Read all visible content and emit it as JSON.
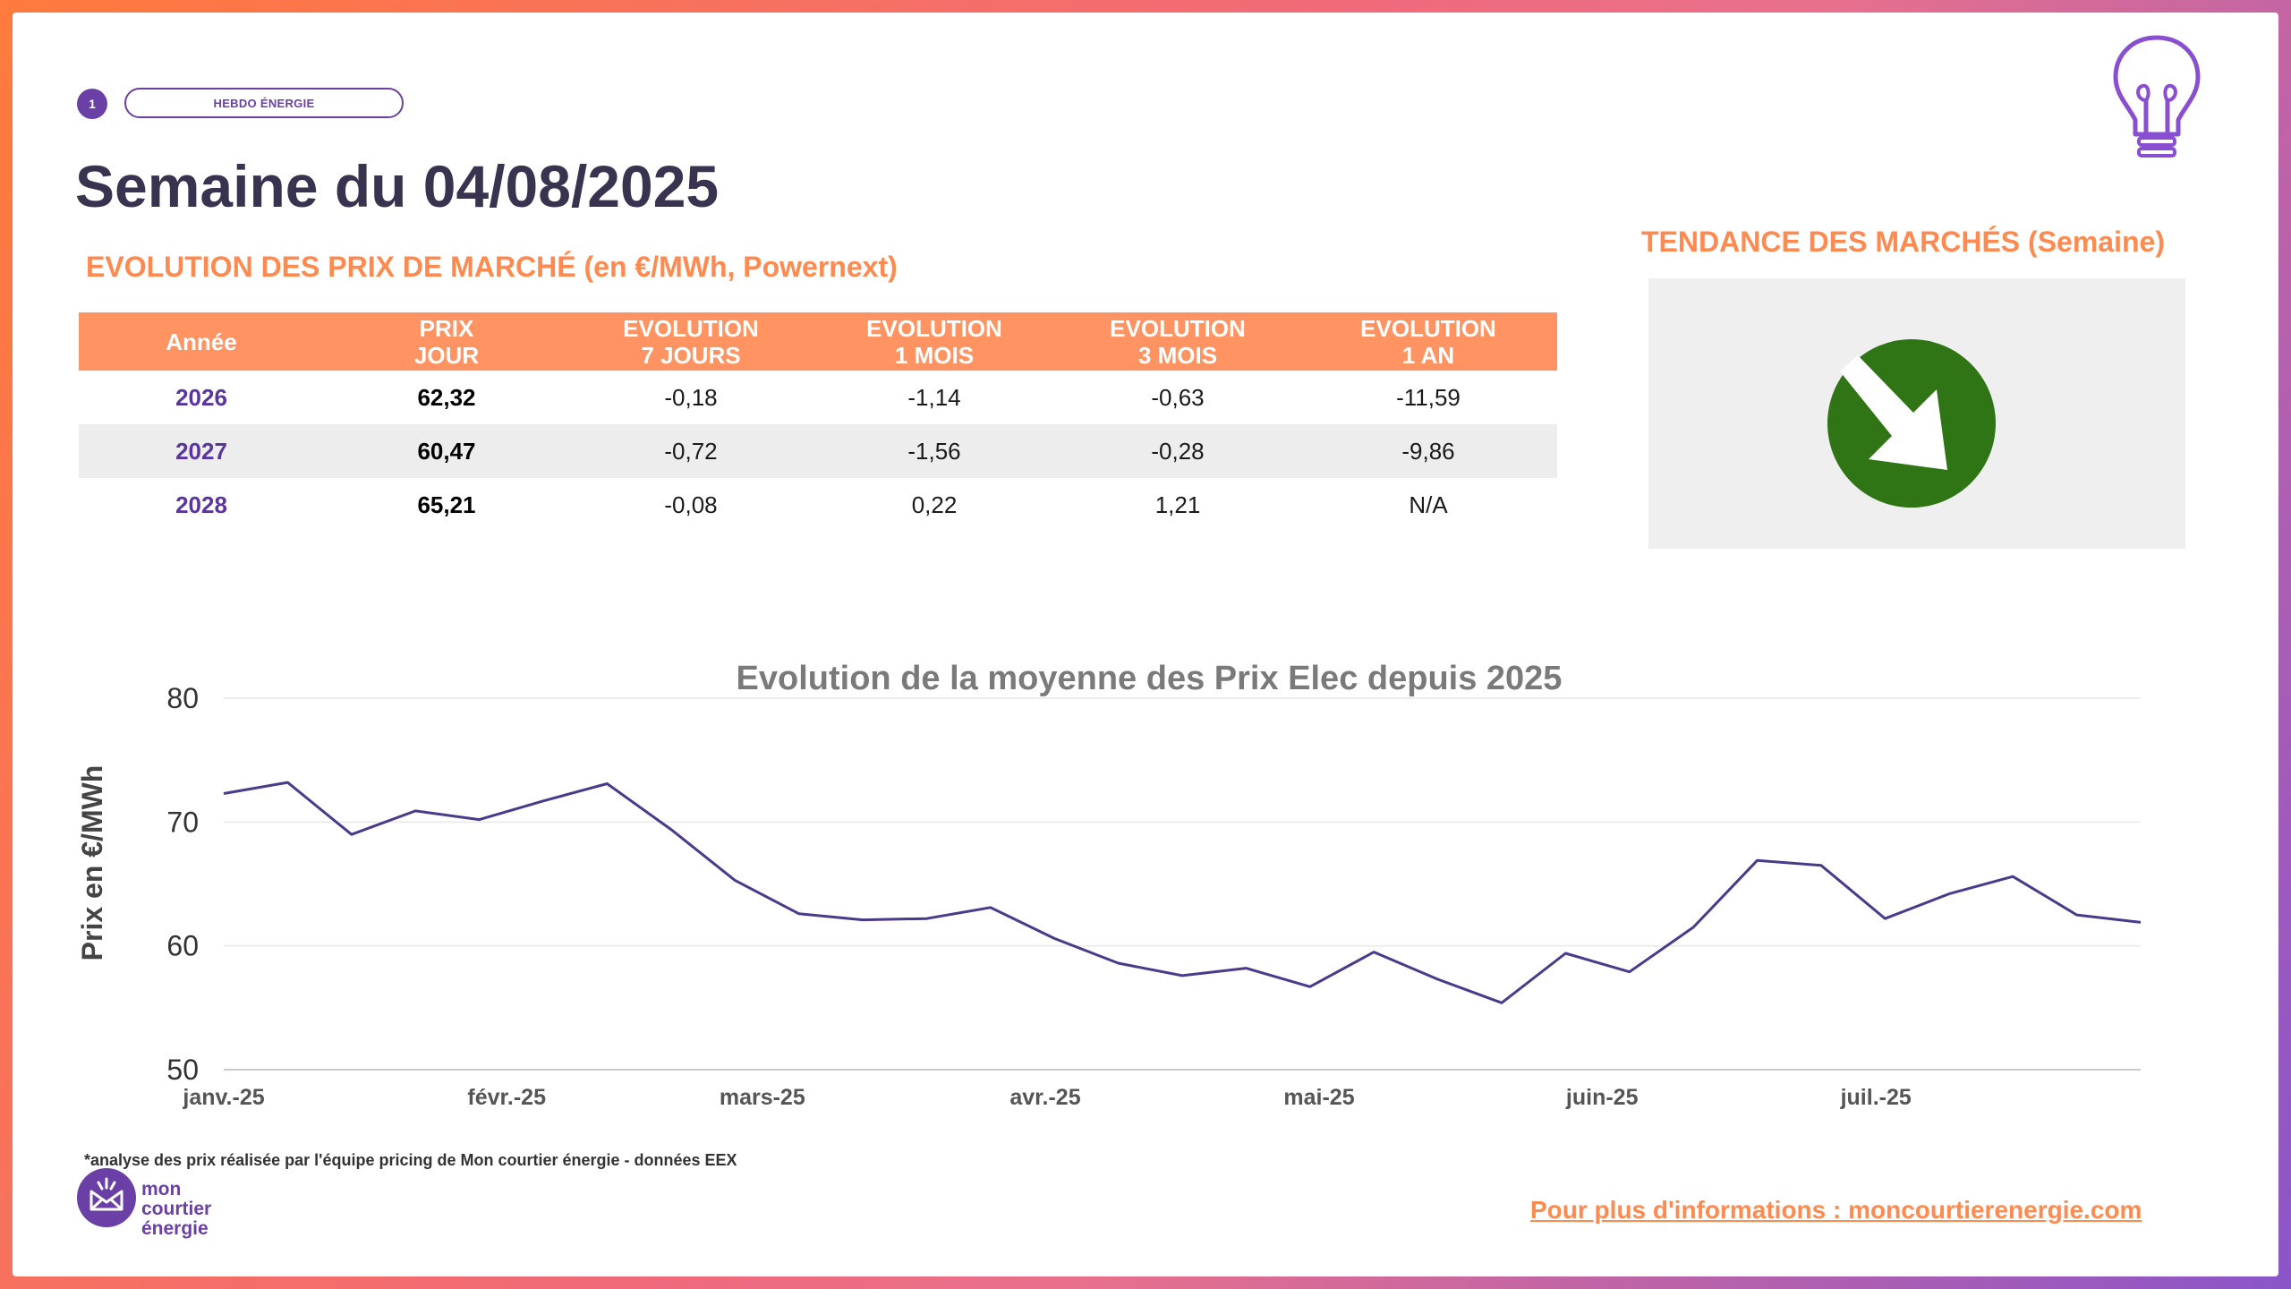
{
  "header": {
    "badge_number": "1",
    "badge_label": "HEBDO ÉNERGIE",
    "title": "Semaine du 04/08/2025",
    "subtitle": "EVOLUTION DES PRIX DE MARCHÉ (en €/MWh, Powernext)"
  },
  "trend": {
    "title": "TENDANCE DES MARCHÉS (Semaine)",
    "direction": "down",
    "color": "#2f7516",
    "icon": "arrow-down-right-icon"
  },
  "table": {
    "headers": [
      [
        "Année"
      ],
      [
        "PRIX",
        "JOUR"
      ],
      [
        "EVOLUTION",
        "7 JOURS"
      ],
      [
        "EVOLUTION",
        "1 MOIS"
      ],
      [
        "EVOLUTION",
        "3 MOIS"
      ],
      [
        "EVOLUTION",
        "1 AN"
      ]
    ],
    "rows": [
      [
        "2026",
        "62,32",
        "-0,18",
        "-1,14",
        "-0,63",
        "-11,59"
      ],
      [
        "2027",
        "60,47",
        "-0,72",
        "-1,56",
        "-0,28",
        "-9,86"
      ],
      [
        "2028",
        "65,21",
        "-0,08",
        "0,22",
        "1,21",
        "N/A"
      ]
    ]
  },
  "chart_data": {
    "type": "line",
    "title": "Evolution de la moyenne des Prix Elec depuis 2025",
    "xlabel": "",
    "ylabel": "Prix en €/MWh",
    "ylim": [
      50,
      80
    ],
    "yticks": [
      50,
      60,
      70,
      80
    ],
    "xticks": [
      "janv.-25",
      "févr.-25",
      "mars-25",
      "avr.-25",
      "mai-25",
      "juin-25",
      "juil.-25"
    ],
    "x": [
      "2025-01-01",
      "2025-01-08",
      "2025-01-15",
      "2025-01-22",
      "2025-01-29",
      "2025-02-05",
      "2025-02-12",
      "2025-02-19",
      "2025-02-26",
      "2025-03-05",
      "2025-03-12",
      "2025-03-19",
      "2025-03-26",
      "2025-04-02",
      "2025-04-09",
      "2025-04-16",
      "2025-04-23",
      "2025-04-30",
      "2025-05-07",
      "2025-05-14",
      "2025-05-21",
      "2025-05-28",
      "2025-06-04",
      "2025-06-11",
      "2025-06-18",
      "2025-06-25",
      "2025-07-02",
      "2025-07-09",
      "2025-07-16",
      "2025-07-23",
      "2025-07-30"
    ],
    "series": [
      {
        "values": [
          72.3,
          73.2,
          69.0,
          70.9,
          70.2,
          71.7,
          73.1,
          69.4,
          65.3,
          62.6,
          62.1,
          62.2,
          63.1,
          60.6,
          58.6,
          57.6,
          58.2,
          56.7,
          59.5,
          57.3,
          55.4,
          59.4,
          57.9,
          61.5,
          66.9,
          66.5,
          62.2,
          64.2,
          65.6,
          62.5,
          61.9
        ]
      }
    ],
    "line_color": "#4b3a8c",
    "grid": true,
    "legend": "none"
  },
  "footer": {
    "footnote": "*analyse des prix réalisée par l'équipe pricing de Mon courtier énergie -  données EEX",
    "logo_lines": [
      "mon",
      "courtier",
      "énergie"
    ],
    "more_info": "Pour plus d'informations : moncourtierenergie.com"
  }
}
